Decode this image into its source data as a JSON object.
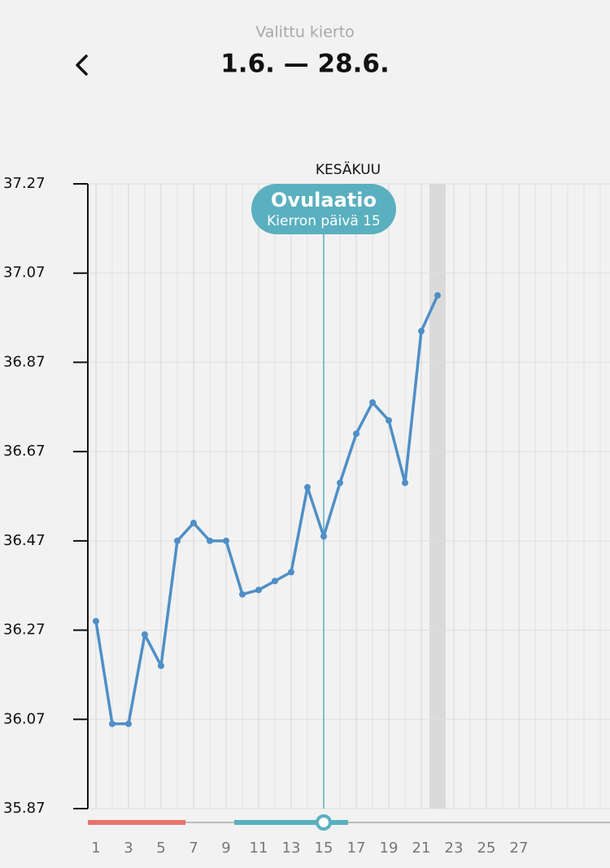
{
  "header": {
    "subtitle": "Valittu kierto",
    "title": "1.6. — 28.6."
  },
  "chart_data": {
    "type": "line",
    "month_label": "KESÄKUU",
    "annotation": {
      "title": "Ovulaatio",
      "subtitle": "Kierron päivä 15",
      "x": 15,
      "color": "#5ab0bf"
    },
    "x": [
      1,
      2,
      3,
      4,
      5,
      6,
      7,
      8,
      9,
      10,
      11,
      12,
      13,
      14,
      15,
      16,
      17,
      18,
      19,
      20,
      21,
      22
    ],
    "series": [
      {
        "color": "#4f8fc6",
        "values": [
          36.29,
          36.06,
          36.06,
          36.26,
          36.19,
          36.47,
          36.51,
          36.47,
          36.47,
          36.35,
          36.36,
          36.38,
          36.4,
          36.59,
          36.48,
          36.6,
          36.71,
          36.78,
          36.74,
          36.6,
          36.94,
          37.02
        ]
      }
    ],
    "highlight_x": 22,
    "phases": [
      {
        "color": "#e8736d",
        "start": 1,
        "end": 6
      },
      {
        "color": "#5ab0bf",
        "start": 10,
        "end": 16
      }
    ],
    "xlim": [
      0.5,
      32.6
    ],
    "ylim": [
      35.87,
      37.27
    ],
    "xticks": [
      1,
      3,
      5,
      7,
      9,
      11,
      13,
      15,
      17,
      19,
      21,
      23,
      25,
      27
    ],
    "yticks": [
      35.87,
      36.07,
      36.27,
      36.47,
      36.67,
      36.87,
      37.07,
      37.27
    ],
    "grid": true
  }
}
